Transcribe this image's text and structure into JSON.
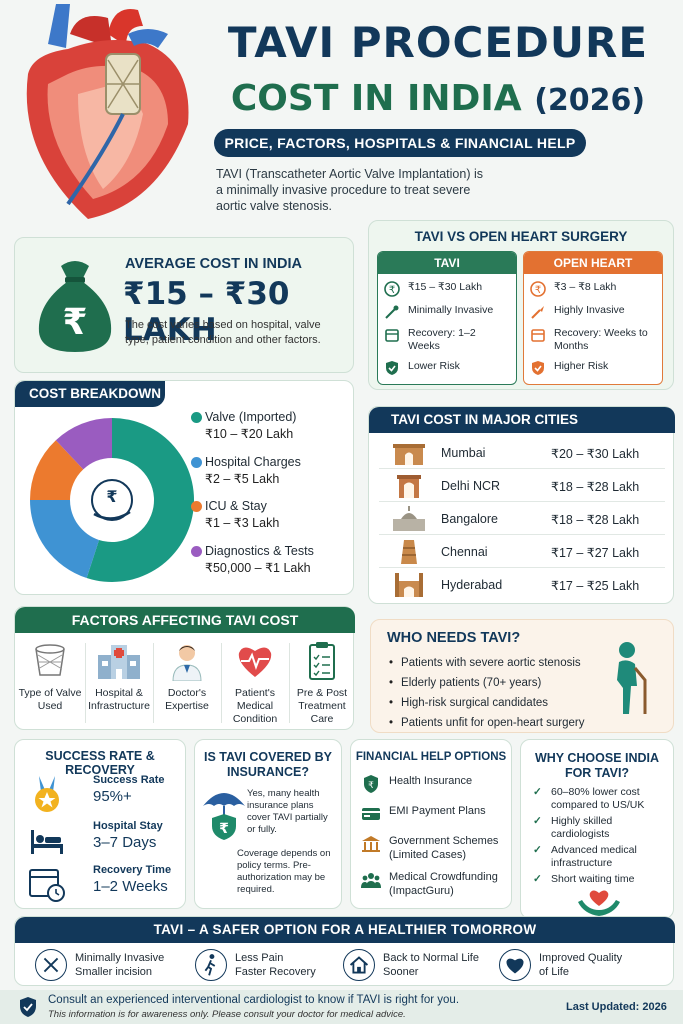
{
  "header": {
    "title_line1": "TAVI PROCEDURE",
    "title_line2": "COST IN INDIA",
    "title_year": "(2026)",
    "subtitle": "PRICE, FACTORS, HOSPITALS & FINANCIAL HELP",
    "intro": "TAVI (Transcatheter Aortic Valve Implantation) is a minimally invasive procedure to treat severe aortic valve stenosis."
  },
  "average_cost": {
    "label": "AVERAGE COST IN INDIA",
    "value": "₹15 – ₹30 LAKH",
    "note": "The cost varies based on hospital, valve type, patient condition and other factors."
  },
  "comparison": {
    "title": "TAVI VS OPEN HEART SURGERY",
    "tavi": {
      "header": "TAVI",
      "rows": [
        "₹15 – ₹30 Lakh",
        "Minimally Invasive",
        "Recovery: 1–2 Weeks",
        "Lower Risk"
      ]
    },
    "open_heart": {
      "header": "OPEN HEART SURGERY",
      "rows": [
        "₹3 – ₹8 Lakh",
        "Highly Invasive",
        "Recovery: Weeks to Months",
        "Higher Risk"
      ]
    }
  },
  "cost_breakdown": {
    "title": "COST BREAKDOWN",
    "items": [
      {
        "name": "Valve (Imported)",
        "range": "₹10 – ₹20 Lakh",
        "color": "#1a9a84"
      },
      {
        "name": "Hospital Charges",
        "range": "₹2 – ₹5 Lakh",
        "color": "#3f93d3"
      },
      {
        "name": "ICU & Stay",
        "range": "₹1 – ₹3 Lakh",
        "color": "#ec7a2e"
      },
      {
        "name": "Diagnostics & Tests",
        "range": "₹50,000 – ₹1 Lakh",
        "color": "#9a5cc0"
      }
    ],
    "segment_share": [
      0.55,
      0.2,
      0.13,
      0.12
    ]
  },
  "cities": {
    "title": "TAVI COST IN MAJOR CITIES",
    "rows": [
      {
        "city": "Mumbai",
        "price": "₹20 – ₹30 Lakh"
      },
      {
        "city": "Delhi NCR",
        "price": "₹18 – ₹28 Lakh"
      },
      {
        "city": "Bangalore",
        "price": "₹18 – ₹28 Lakh"
      },
      {
        "city": "Chennai",
        "price": "₹17 – ₹27 Lakh"
      },
      {
        "city": "Hyderabad",
        "price": "₹17 – ₹25 Lakh"
      }
    ]
  },
  "factors": {
    "title": "FACTORS AFFECTING TAVI COST",
    "items": [
      "Type of Valve Used",
      "Hospital & Infrastructure",
      "Doctor's Expertise",
      "Patient's Medical Condition",
      "Pre & Post Treatment Care"
    ]
  },
  "who_needs": {
    "title": "WHO NEEDS TAVI?",
    "items": [
      "Patients with severe aortic stenosis",
      "Elderly patients (70+ years)",
      "High-risk surgical candidates",
      "Patients unfit for open-heart surgery"
    ]
  },
  "success": {
    "title": "SUCCESS RATE & RECOVERY",
    "items": [
      {
        "label": "Success Rate",
        "value": "95%+"
      },
      {
        "label": "Hospital Stay",
        "value": "3–7 Days"
      },
      {
        "label": "Recovery Time",
        "value": "1–2 Weeks"
      }
    ]
  },
  "insurance": {
    "title": "IS TAVI COVERED BY INSURANCE?",
    "text1": "Yes, many health insurance plans cover TAVI partially or fully.",
    "text2": "Coverage depends on policy terms. Pre-authorization may be required."
  },
  "financial": {
    "title": "FINANCIAL HELP OPTIONS",
    "items": [
      "Health Insurance",
      "EMI Payment Plans",
      "Government Schemes (Limited Cases)",
      "Medical Crowdfunding (ImpactGuru)"
    ]
  },
  "why_india": {
    "title": "WHY CHOOSE INDIA FOR TAVI?",
    "items": [
      "60–80% lower cost compared to US/UK",
      "Highly skilled cardiologists",
      "Advanced medical infrastructure",
      "Short waiting time"
    ]
  },
  "safer": {
    "title": "TAVI – A SAFER OPTION FOR A HEALTHIER TOMORROW",
    "benefits": [
      {
        "line1": "Minimally Invasive",
        "line2": "Smaller incision"
      },
      {
        "line1": "Less Pain",
        "line2": "Faster Recovery"
      },
      {
        "line1": "Back to Normal Life",
        "line2": "Sooner"
      },
      {
        "line1": "Improved Quality",
        "line2": "of Life"
      }
    ]
  },
  "footer": {
    "consult": "Consult an experienced interventional cardiologist to know if TAVI is right for you.",
    "disclaimer": "This information is for awareness only. Please consult your doctor for medical advice.",
    "updated": "Last Updated: 2026"
  }
}
